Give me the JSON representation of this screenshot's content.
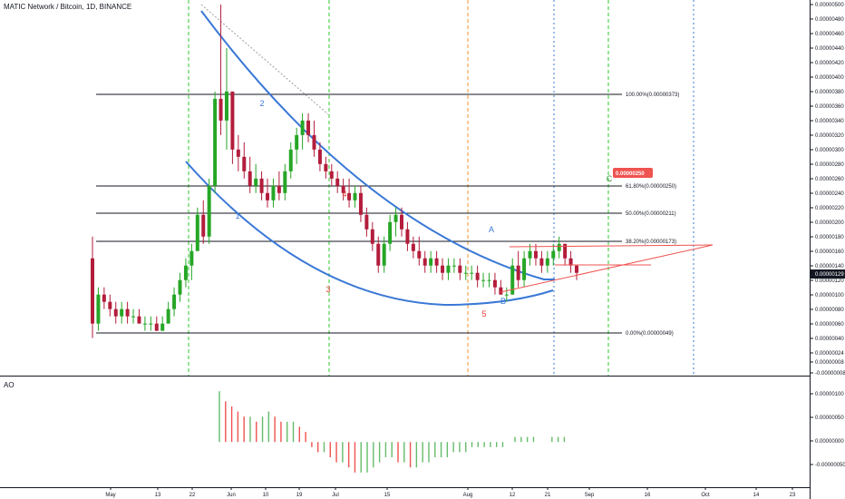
{
  "header": {
    "title": "MATIC Network / Bitcoin, 1D, BINANCE",
    "ao_label": "AO"
  },
  "colors": {
    "up": "#26a626",
    "down": "#b31d3c",
    "curve": "#3a78d6",
    "fib": "#131722",
    "green_vline": "#2ec92e",
    "orange_vline": "#f0922a",
    "blue_vline": "#3a78d6",
    "trend_red": "#ef5350",
    "wave_red": "#e53935",
    "wave_blue": "#3a78d6",
    "ao_up": "#66bb6a",
    "ao_down": "#ef5350",
    "price_badge": "#ef5350"
  },
  "price_axis": {
    "ticks": [
      "0.00000500",
      "0.00000480",
      "0.00000460",
      "0.00000440",
      "0.00000420",
      "0.00000400",
      "0.00000380",
      "0.00000360",
      "0.00000340",
      "0.00000320",
      "0.00000300",
      "0.00000280",
      "0.00000260",
      "0.00000240",
      "0.00000220",
      "0.00000200",
      "0.00000180",
      "0.00000160",
      "0.00000140",
      "0.00000120",
      "0.00000100",
      "0.00000080",
      "0.00000060",
      "0.00000040",
      "0.00000024",
      "0.00000008",
      "-0.00000008"
    ],
    "current_price": "0.00000129",
    "target_price": "0.00000250"
  },
  "ao_axis": {
    "ticks": [
      "0.00000100",
      "0.00000050",
      "0.00000000",
      "-0.00000050"
    ]
  },
  "time_axis": {
    "labels": [
      "May",
      "13",
      "22",
      "Jun",
      "10",
      "19",
      "Jul",
      "15",
      "Aug",
      "12",
      "21",
      "Sep",
      "16",
      "Oct",
      "14",
      "23"
    ]
  },
  "fib_levels": [
    {
      "label": "100.00%(0.00000373)"
    },
    {
      "label": "61.80%(0.00000250)"
    },
    {
      "label": "50.00%(0.00000211)"
    },
    {
      "label": "38.20%(0.00000173)"
    },
    {
      "label": "0.00%(0.00000049)"
    }
  ],
  "wave_labels": [
    {
      "text": "1"
    },
    {
      "text": "2"
    },
    {
      "text": "3"
    },
    {
      "text": "4"
    },
    {
      "text": "5"
    },
    {
      "text": "A"
    },
    {
      "text": "B"
    },
    {
      "text": "C"
    }
  ],
  "chart_data": {
    "type": "candlestick",
    "title": "MATIC Network / Bitcoin, 1D, BINANCE",
    "ylim": [
      -8e-08,
      5e-06
    ],
    "candles_ohlc": [
      [
        1.5e-06,
        1.8e-06,
        4e-07,
        6e-07
      ],
      [
        6e-07,
        1.1e-06,
        5e-07,
        1e-06
      ],
      [
        1e-06,
        1.1e-06,
        8e-07,
        9e-07
      ],
      [
        9e-07,
        1e-06,
        7e-07,
        8e-07
      ],
      [
        8e-07,
        9e-07,
        6e-07,
        7e-07
      ],
      [
        7e-07,
        9e-07,
        6e-07,
        8e-07
      ],
      [
        8e-07,
        9e-07,
        6e-07,
        7e-07
      ],
      [
        7e-07,
        8e-07,
        6e-07,
        7e-07
      ],
      [
        7e-07,
        8e-07,
        6e-07,
        6e-07
      ],
      [
        6e-07,
        7e-07,
        5e-07,
        6e-07
      ],
      [
        6e-07,
        7e-07,
        5e-07,
        6e-07
      ],
      [
        6e-07,
        7e-07,
        5e-07,
        5e-07
      ],
      [
        5e-07,
        7e-07,
        5e-07,
        6e-07
      ],
      [
        6e-07,
        9e-07,
        6e-07,
        8e-07
      ],
      [
        8e-07,
        1.1e-06,
        7e-07,
        1e-06
      ],
      [
        1e-06,
        1.3e-06,
        9e-07,
        1.2e-06
      ],
      [
        1.2e-06,
        1.5e-06,
        1.1e-06,
        1.4e-06
      ],
      [
        1.4e-06,
        1.7e-06,
        1.2e-06,
        1.6e-06
      ],
      [
        1.6e-06,
        2.2e-06,
        1.6e-06,
        2.1e-06
      ],
      [
        2.1e-06,
        2.3e-06,
        1.7e-06,
        1.8e-06
      ],
      [
        1.8e-06,
        2.6e-06,
        1.7e-06,
        2.5e-06
      ],
      [
        2.5e-06,
        3.8e-06,
        2.4e-06,
        3.7e-06
      ],
      [
        3.7e-06,
        5e-06,
        3.2e-06,
        3.4e-06
      ],
      [
        3.4e-06,
        4.4e-06,
        3e-06,
        3.8e-06
      ],
      [
        3.8e-06,
        3.8e-06,
        2.8e-06,
        3e-06
      ],
      [
        3e-06,
        3.2e-06,
        2.7e-06,
        2.9e-06
      ],
      [
        2.9e-06,
        3.1e-06,
        2.6e-06,
        2.7e-06
      ],
      [
        2.7e-06,
        2.9e-06,
        2.4e-06,
        2.5e-06
      ],
      [
        2.5e-06,
        2.8e-06,
        2.4e-06,
        2.6e-06
      ],
      [
        2.6e-06,
        2.7e-06,
        2.3e-06,
        2.4e-06
      ],
      [
        2.4e-06,
        2.6e-06,
        2.2e-06,
        2.3e-06
      ],
      [
        2.3e-06,
        2.6e-06,
        2.2e-06,
        2.5e-06
      ],
      [
        2.5e-06,
        2.7e-06,
        2.3e-06,
        2.4e-06
      ],
      [
        2.4e-06,
        2.8e-06,
        2.3e-06,
        2.7e-06
      ],
      [
        2.7e-06,
        3.1e-06,
        2.6e-06,
        3e-06
      ],
      [
        3e-06,
        3.3e-06,
        2.8e-06,
        3.2e-06
      ],
      [
        3.2e-06,
        3.5e-06,
        3e-06,
        3.4e-06
      ],
      [
        3.4e-06,
        3.5e-06,
        3.1e-06,
        3.2e-06
      ],
      [
        3.2e-06,
        3.4e-06,
        2.9e-06,
        3e-06
      ],
      [
        3e-06,
        3.1e-06,
        2.7e-06,
        2.8e-06
      ],
      [
        2.8e-06,
        2.9e-06,
        2.6e-06,
        2.7e-06
      ],
      [
        2.7e-06,
        2.8e-06,
        2.5e-06,
        2.6e-06
      ],
      [
        2.6e-06,
        2.7e-06,
        2.4e-06,
        2.5e-06
      ],
      [
        2.5e-06,
        2.6e-06,
        2.3e-06,
        2.4e-06
      ],
      [
        2.4e-06,
        2.6e-06,
        2.2e-06,
        2.3e-06
      ],
      [
        2.3e-06,
        2.5e-06,
        2.2e-06,
        2.4e-06
      ],
      [
        2.4e-06,
        2.5e-06,
        2e-06,
        2.1e-06
      ],
      [
        2.1e-06,
        2.2e-06,
        1.8e-06,
        1.9e-06
      ],
      [
        1.9e-06,
        2e-06,
        1.6e-06,
        1.7e-06
      ],
      [
        1.7e-06,
        1.8e-06,
        1.3e-06,
        1.4e-06
      ],
      [
        1.4e-06,
        1.8e-06,
        1.3e-06,
        1.7e-06
      ],
      [
        1.7e-06,
        2.1e-06,
        1.6e-06,
        2e-06
      ],
      [
        2e-06,
        2.2e-06,
        1.8e-06,
        2.1e-06
      ],
      [
        2.1e-06,
        2.2e-06,
        1.8e-06,
        1.9e-06
      ],
      [
        1.9e-06,
        2e-06,
        1.6e-06,
        1.7e-06
      ],
      [
        1.7e-06,
        1.8e-06,
        1.5e-06,
        1.6e-06
      ],
      [
        1.6e-06,
        1.8e-06,
        1.4e-06,
        1.5e-06
      ],
      [
        1.5e-06,
        1.6e-06,
        1.3e-06,
        1.4e-06
      ],
      [
        1.4e-06,
        1.6e-06,
        1.3e-06,
        1.5e-06
      ],
      [
        1.5e-06,
        1.6e-06,
        1.3e-06,
        1.4e-06
      ],
      [
        1.4e-06,
        1.5e-06,
        1.2e-06,
        1.3e-06
      ],
      [
        1.3e-06,
        1.5e-06,
        1.2e-06,
        1.4e-06
      ],
      [
        1.4e-06,
        1.5e-06,
        1.3e-06,
        1.4e-06
      ],
      [
        1.4e-06,
        1.5e-06,
        1.2e-06,
        1.3e-06
      ],
      [
        1.3e-06,
        1.4e-06,
        1.2e-06,
        1.3e-06
      ],
      [
        1.3e-06,
        1.4e-06,
        1.2e-06,
        1.3e-06
      ],
      [
        1.3e-06,
        1.4e-06,
        1.1e-06,
        1.2e-06
      ],
      [
        1.2e-06,
        1.3e-06,
        1.1e-06,
        1.2e-06
      ],
      [
        1.2e-06,
        1.3e-06,
        1.1e-06,
        1.2e-06
      ],
      [
        1.2e-06,
        1.3e-06,
        1e-06,
        1.1e-06
      ],
      [
        1.1e-06,
        1.2e-06,
        1e-06,
        1e-06
      ],
      [
        1e-06,
        1.1e-06,
        9e-07,
        1e-06
      ],
      [
        1e-06,
        1.5e-06,
        1e-06,
        1.4e-06
      ],
      [
        1.4e-06,
        1.6e-06,
        1.1e-06,
        1.2e-06
      ],
      [
        1.2e-06,
        1.6e-06,
        1.1e-06,
        1.5e-06
      ],
      [
        1.5e-06,
        1.7e-06,
        1.4e-06,
        1.6e-06
      ],
      [
        1.6e-06,
        1.7e-06,
        1.4e-06,
        1.5e-06
      ],
      [
        1.5e-06,
        1.6e-06,
        1.3e-06,
        1.4e-06
      ],
      [
        1.4e-06,
        1.6e-06,
        1.3e-06,
        1.5e-06
      ],
      [
        1.5e-06,
        1.7e-06,
        1.4e-06,
        1.6e-06
      ],
      [
        1.6e-06,
        1.8e-06,
        1.5e-06,
        1.7e-06
      ],
      [
        1.7e-06,
        1.7e-06,
        1.4e-06,
        1.5e-06
      ],
      [
        1.5e-06,
        1.6e-06,
        1.3e-06,
        1.4e-06
      ],
      [
        1.4e-06,
        1.4e-06,
        1.2e-06,
        1.3e-06
      ]
    ],
    "ao_values": [
      1e-06,
      8e-07,
      7e-07,
      6e-07,
      5e-07,
      5e-07,
      4e-07,
      5e-07,
      6e-07,
      5e-07,
      4e-07,
      4e-07,
      4e-07,
      3e-07,
      2e-07,
      -1e-07,
      -2e-07,
      -2e-07,
      -3e-07,
      -4e-07,
      -4e-07,
      -5e-07,
      -6e-07,
      -6e-07,
      -6e-07,
      -5e-07,
      -4e-07,
      -3e-07,
      -3e-07,
      -4e-07,
      -4e-07,
      -5e-07,
      -5e-07,
      -4e-07,
      -4e-07,
      -3e-07,
      -3e-07,
      -3e-07,
      -2e-07,
      -2e-07,
      -2e-07,
      -1e-07,
      -1e-07,
      -1e-07,
      -1e-07,
      -1e-07,
      -1e-07,
      0.0,
      1e-07,
      1e-07,
      1e-07,
      1e-07,
      0.0,
      0.0,
      1e-07,
      1e-07,
      1e-07,
      0.0,
      0.0
    ],
    "ao_ylim": [
      -8e-07,
      1.2e-06
    ]
  }
}
